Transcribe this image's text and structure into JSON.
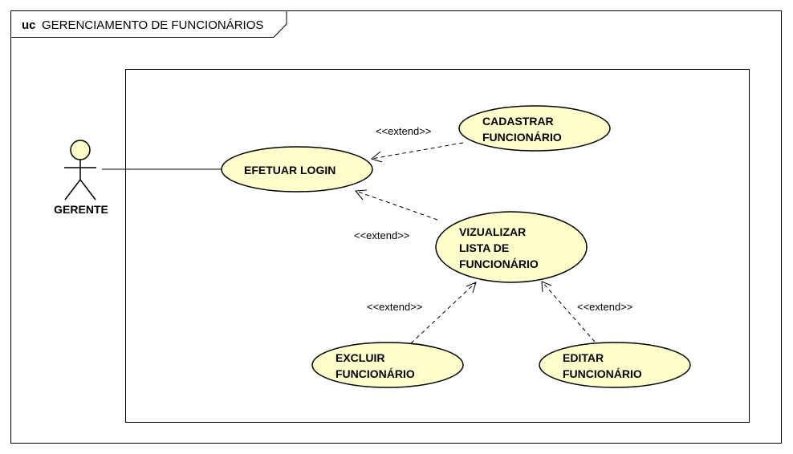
{
  "frame": {
    "keyword": "uc",
    "name": "GERENCIAMENTO DE FUNCIONÁRIOS"
  },
  "actor": {
    "label": "GERENTE"
  },
  "use_cases": {
    "efetuar_login": [
      "EFETUAR LOGIN"
    ],
    "cadastrar": [
      "CADASTRAR",
      "FUNCIONÁRIO"
    ],
    "visualizar": [
      "VIZUALIZAR",
      "LISTA DE",
      "FUNCIONÁRIO"
    ],
    "excluir": [
      "EXCLUIR",
      "FUNCIONÁRIO"
    ],
    "editar": [
      "EDITAR",
      "FUNCIONÁRIO"
    ]
  },
  "relations": {
    "cadastrar_extend": "<<extend>>",
    "visualizar_extend": "<<extend>>",
    "excluir_extend": "<<extend>>",
    "editar_extend": "<<extend>>"
  },
  "colors": {
    "use_case_fill": "#FFFFCC",
    "stroke": "#000000",
    "background": "#FFFFFF"
  }
}
